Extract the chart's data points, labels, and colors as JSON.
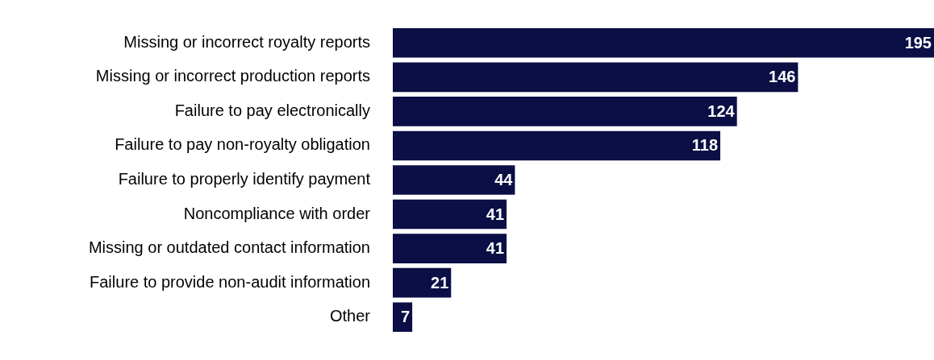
{
  "chart_data": {
    "type": "bar",
    "orientation": "horizontal",
    "categories": [
      "Missing or incorrect royalty reports",
      "Missing or incorrect production reports",
      "Failure to pay electronically",
      "Failure to pay non-royalty obligation",
      "Failure to properly identify payment",
      "Noncompliance with order",
      "Missing or outdated contact information",
      "Failure to provide non-audit information",
      "Other"
    ],
    "values": [
      195,
      146,
      124,
      118,
      44,
      41,
      41,
      21,
      7
    ],
    "color": "#0b0f45",
    "data_labels": true,
    "tick_labels": "y",
    "legend": false
  }
}
